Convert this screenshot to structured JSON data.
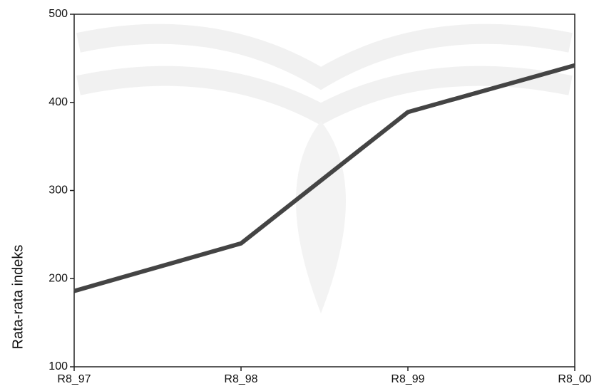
{
  "chart_data": {
    "type": "line",
    "y_label": "Rata-rata indeks",
    "categories": [
      "R8_97",
      "R8_98",
      "R8_99",
      "R8_00"
    ],
    "values": [
      186,
      240,
      389,
      442
    ],
    "color": "#444444",
    "ylim": [
      100,
      500
    ],
    "yticks": [
      100,
      200,
      300,
      400,
      500
    ]
  }
}
